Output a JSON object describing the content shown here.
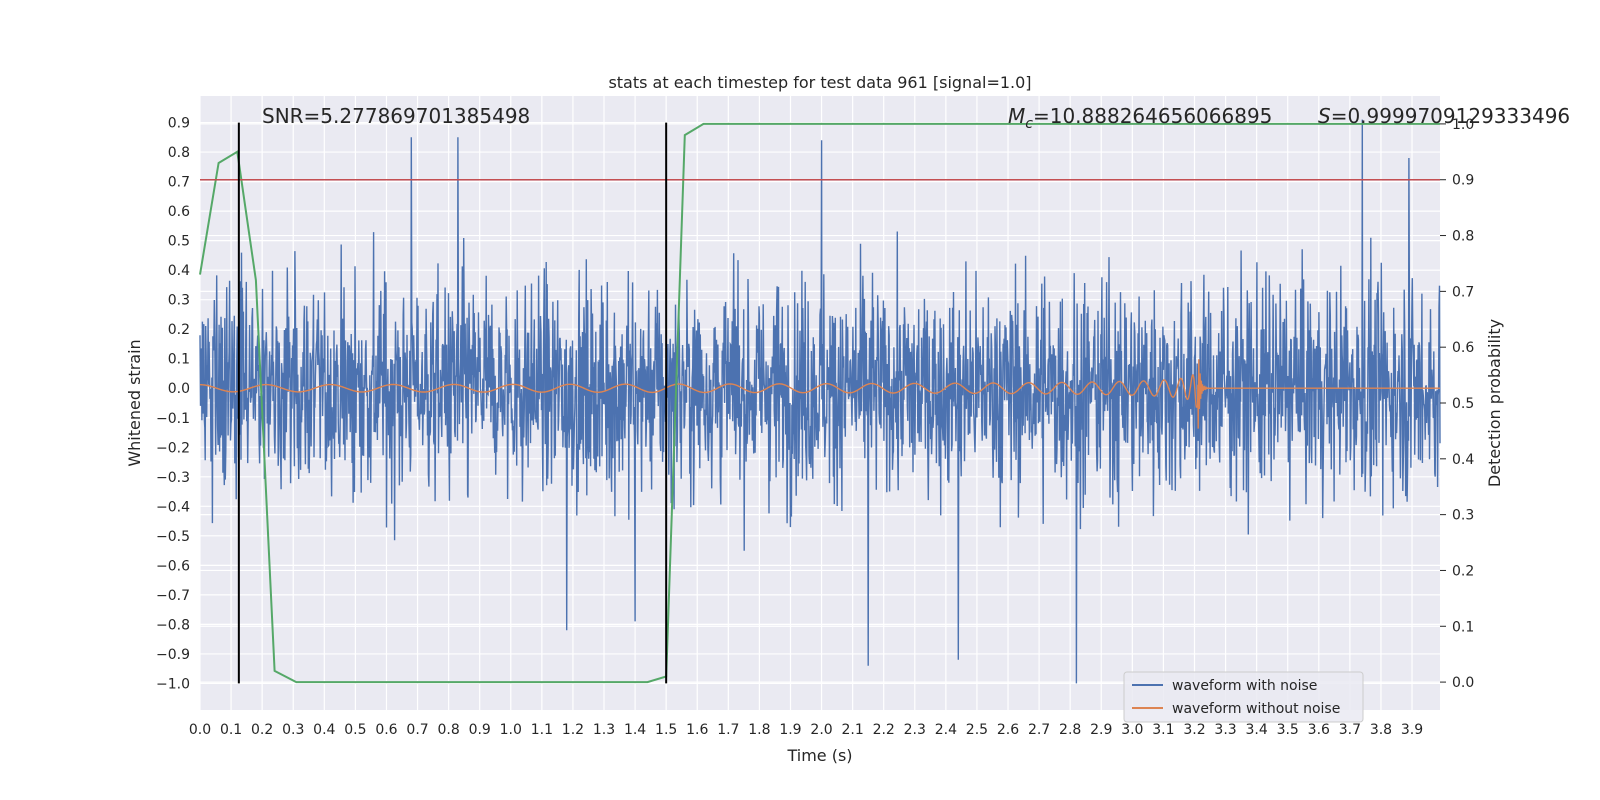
{
  "chart_data": {
    "type": "line",
    "title": "stats at each timestep for test data 961 [signal=1.0]",
    "xlabel": "Time (s)",
    "ylabel_left": "Whitened strain",
    "ylabel_right": "Detection probability",
    "xlim": [
      0.0,
      3.99
    ],
    "ylim_left": [
      -1.09,
      0.99
    ],
    "ylim_right": [
      -0.05,
      1.05
    ],
    "x_ticks": [
      "0.0",
      "0.1",
      "0.2",
      "0.3",
      "0.4",
      "0.5",
      "0.6",
      "0.7",
      "0.8",
      "0.9",
      "1.0",
      "1.1",
      "1.2",
      "1.3",
      "1.4",
      "1.5",
      "1.6",
      "1.7",
      "1.8",
      "1.9",
      "2.0",
      "2.1",
      "2.2",
      "2.3",
      "2.4",
      "2.5",
      "2.6",
      "2.7",
      "2.8",
      "2.9",
      "3.0",
      "3.1",
      "3.2",
      "3.3",
      "3.4",
      "3.5",
      "3.6",
      "3.7",
      "3.8",
      "3.9"
    ],
    "y_ticks_left": [
      "0.9",
      "0.8",
      "0.7",
      "0.6",
      "0.5",
      "0.4",
      "0.3",
      "0.2",
      "0.1",
      "0.0",
      "−0.1",
      "−0.2",
      "−0.3",
      "−0.4",
      "−0.5",
      "−0.6",
      "−0.7",
      "−0.8",
      "−0.9",
      "−1.0"
    ],
    "y_ticks_right": [
      "1.0",
      "0.9",
      "0.8",
      "0.7",
      "0.6",
      "0.5",
      "0.4",
      "0.3",
      "0.2",
      "0.1",
      "0.0"
    ],
    "series": [
      {
        "name": "waveform with noise",
        "color": "#4c72b0",
        "description": "noisy whitened strain, amplitude mostly within ±0.45 with spikes to 0.9 and -1.0",
        "envelope": {
          "typical_amplitude": 0.42
        },
        "spikes": [
          {
            "x": 0.68,
            "y": 0.85
          },
          {
            "x": 0.83,
            "y": 0.85
          },
          {
            "x": 2.0,
            "y": 0.84
          },
          {
            "x": 3.74,
            "y": 0.91
          },
          {
            "x": 3.89,
            "y": 0.78
          },
          {
            "x": 2.15,
            "y": -0.94
          },
          {
            "x": 2.44,
            "y": -0.92
          },
          {
            "x": 2.82,
            "y": -1.0
          },
          {
            "x": 1.18,
            "y": -0.82
          },
          {
            "x": 1.4,
            "y": -0.79
          }
        ]
      },
      {
        "name": "waveform without noise",
        "color": "#dd8452",
        "description": "chirp waveform, frequency and amplitude increasing until merger near 3.21 s",
        "merger_time": 3.21,
        "peak_amplitude": 0.19,
        "start_amplitude": 0.012
      },
      {
        "name": "detection probability",
        "color": "#55a868",
        "axis": "right",
        "x": [
          0.0,
          0.06,
          0.12,
          0.18,
          0.24,
          0.31,
          0.5,
          0.8,
          1.1,
          1.44,
          1.5,
          1.56,
          1.62,
          2.0,
          3.0,
          3.99
        ],
        "y": [
          0.73,
          0.93,
          0.95,
          0.72,
          0.02,
          0.0,
          0.0,
          0.0,
          0.0,
          0.0,
          0.01,
          0.98,
          1.0,
          1.0,
          1.0,
          1.0
        ]
      }
    ],
    "threshold": {
      "color": "#c44e52",
      "value_right_axis": 0.9
    },
    "vertical_markers": [
      {
        "x": 0.125,
        "y_from": -1.0,
        "y_to": 0.9,
        "color": "#000000"
      },
      {
        "x": 1.5,
        "y_from": -1.0,
        "y_to": 0.9,
        "color": "#000000"
      }
    ],
    "annotations": {
      "snr": "SNR=5.277869701385498",
      "mc_symbol": "M",
      "mc_subscript": "c",
      "mc_value": "=10.888264656066895",
      "s_symbol": "S",
      "s_value": "=0.9999709129333496"
    },
    "legend": {
      "position": "lower-right",
      "entries": [
        "waveform with noise",
        "waveform without noise"
      ]
    }
  }
}
